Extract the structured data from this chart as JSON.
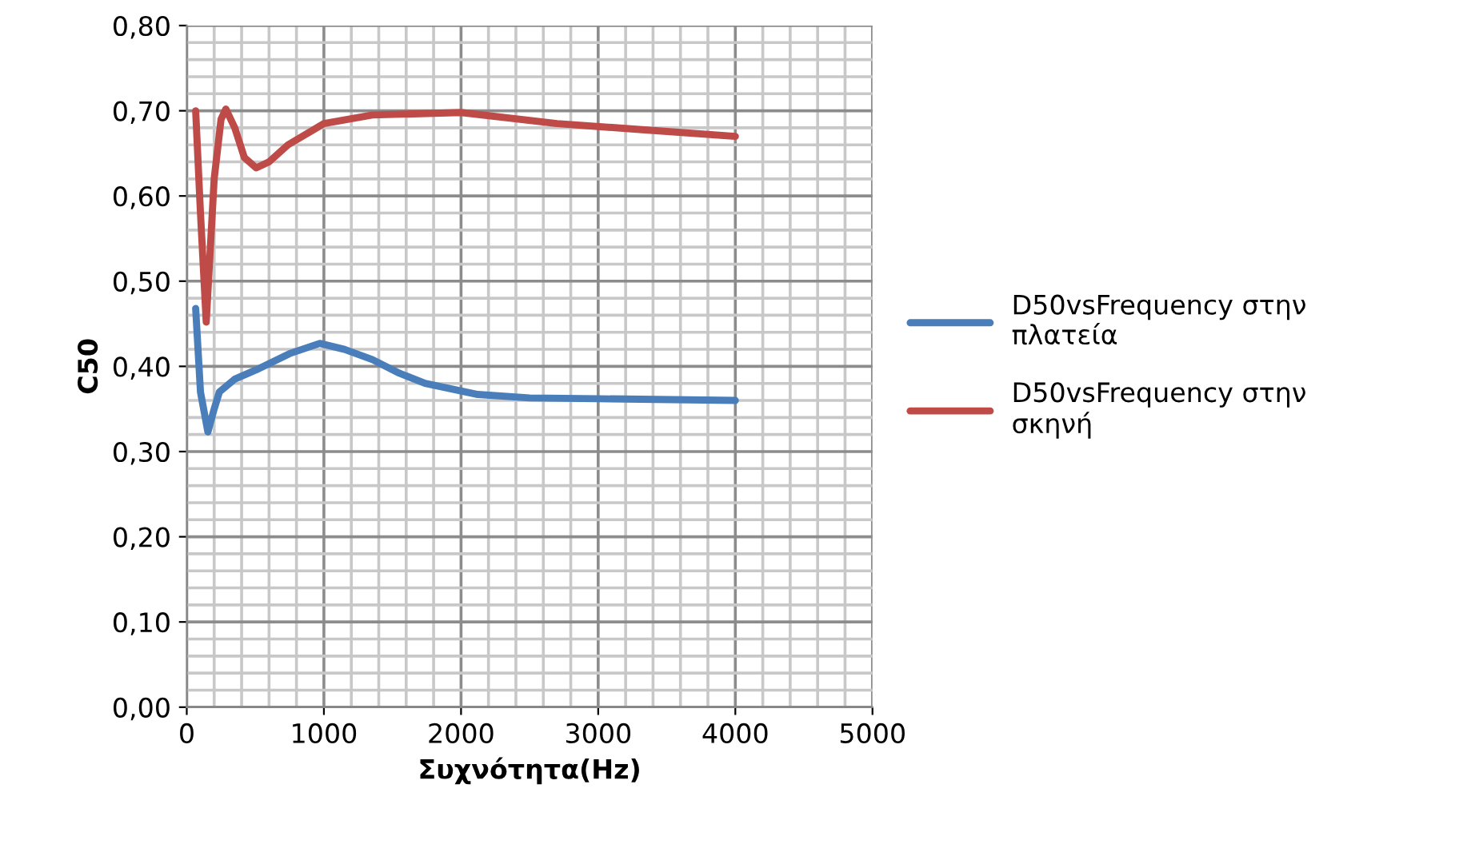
{
  "chart_data": {
    "type": "line",
    "xlabel": "Συχνότητα(Hz)",
    "ylabel": "C50",
    "series": [
      {
        "name": "D50vsFrequency στην πλατεία",
        "color": "#4a7ebb",
        "x": [
          65,
          100,
          154,
          200,
          238,
          350,
          507,
          750,
          970,
          1150,
          1353,
          1550,
          1738,
          2122,
          2500,
          3000,
          4000
        ],
        "values": [
          0.468,
          0.37,
          0.323,
          0.35,
          0.37,
          0.385,
          0.396,
          0.415,
          0.427,
          0.42,
          0.408,
          0.392,
          0.38,
          0.367,
          0.363,
          0.362,
          0.36
        ]
      },
      {
        "name": "D50vsFrequency στην σκηνή",
        "color": "#be4b48",
        "x": [
          65,
          100,
          142,
          200,
          250,
          285,
          350,
          420,
          507,
          600,
          738,
          1000,
          1353,
          2000,
          2700,
          3300,
          4000
        ],
        "values": [
          0.7,
          0.58,
          0.452,
          0.62,
          0.69,
          0.702,
          0.68,
          0.645,
          0.633,
          0.64,
          0.66,
          0.685,
          0.695,
          0.698,
          0.685,
          0.678,
          0.67
        ]
      }
    ],
    "xlim": [
      0,
      5000
    ],
    "xticks": [
      0,
      1000,
      2000,
      3000,
      4000,
      5000
    ],
    "ylim": [
      0,
      0.8
    ],
    "yticks": [
      {
        "value": 0,
        "label": "0,00"
      },
      {
        "value": 0.1,
        "label": "0,10"
      },
      {
        "value": 0.2,
        "label": "0,20"
      },
      {
        "value": 0.3,
        "label": "0,30"
      },
      {
        "value": 0.4,
        "label": "0,40"
      },
      {
        "value": 0.5,
        "label": "0,50"
      },
      {
        "value": 0.6,
        "label": "0,60"
      },
      {
        "value": 0.7,
        "label": "0,70"
      },
      {
        "value": 0.8,
        "label": "0,80"
      }
    ],
    "grid": true,
    "legend": "right",
    "marker": "none",
    "line_style": "solid"
  }
}
